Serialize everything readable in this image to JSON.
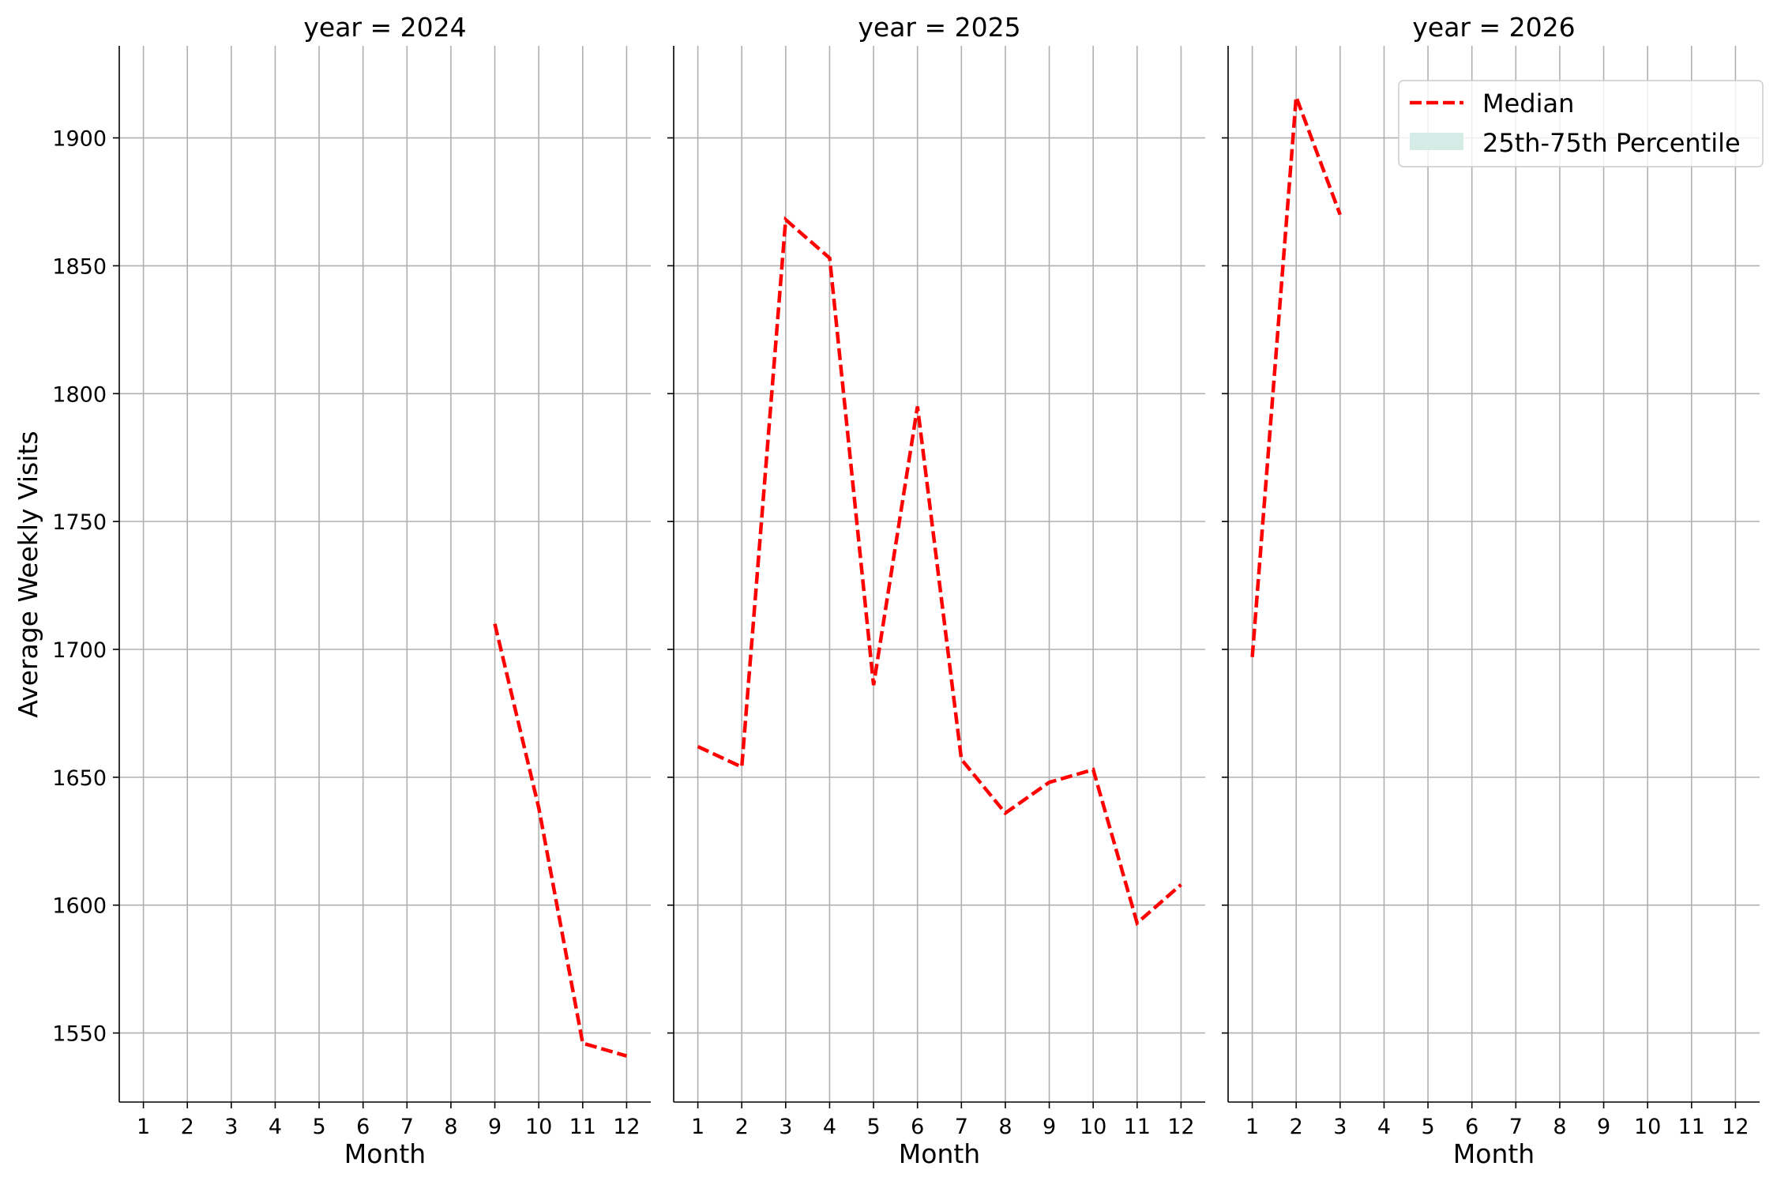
{
  "chart_data": {
    "type": "line",
    "ylabel": "Average Weekly Visits",
    "xlabel": "Month",
    "ylim": [
      1523,
      1936
    ],
    "xlim": [
      0.45,
      12.55
    ],
    "yticks": [
      1550,
      1600,
      1650,
      1700,
      1750,
      1800,
      1850,
      1900
    ],
    "xticks": [
      1,
      2,
      3,
      4,
      5,
      6,
      7,
      8,
      9,
      10,
      11,
      12
    ],
    "grid": true,
    "legend": {
      "placement": "top-right",
      "entries": [
        {
          "label": "Median",
          "color": "#ff0000",
          "style": "dashed-line"
        },
        {
          "label": "25th-75th Percentile",
          "color": "#d5ece6",
          "style": "filled-band"
        }
      ]
    },
    "panels": [
      {
        "title": "year = 2024",
        "x": [
          9,
          10,
          11,
          12
        ],
        "median": [
          1710,
          1638,
          1546,
          1541
        ]
      },
      {
        "title": "year = 2025",
        "x": [
          1,
          2,
          3,
          4,
          5,
          6,
          7,
          8,
          9,
          10,
          11,
          12
        ],
        "median": [
          1662,
          1654,
          1868,
          1853,
          1686,
          1795,
          1657,
          1636,
          1648,
          1653,
          1593,
          1608
        ]
      },
      {
        "title": "year = 2026",
        "x": [
          1,
          2,
          3
        ],
        "median": [
          1697,
          1916,
          1870
        ]
      }
    ]
  },
  "colors": {
    "median": "#ff0000",
    "band": "#d5ece6",
    "grid": "#b0b0b0",
    "axis": "#000000"
  }
}
